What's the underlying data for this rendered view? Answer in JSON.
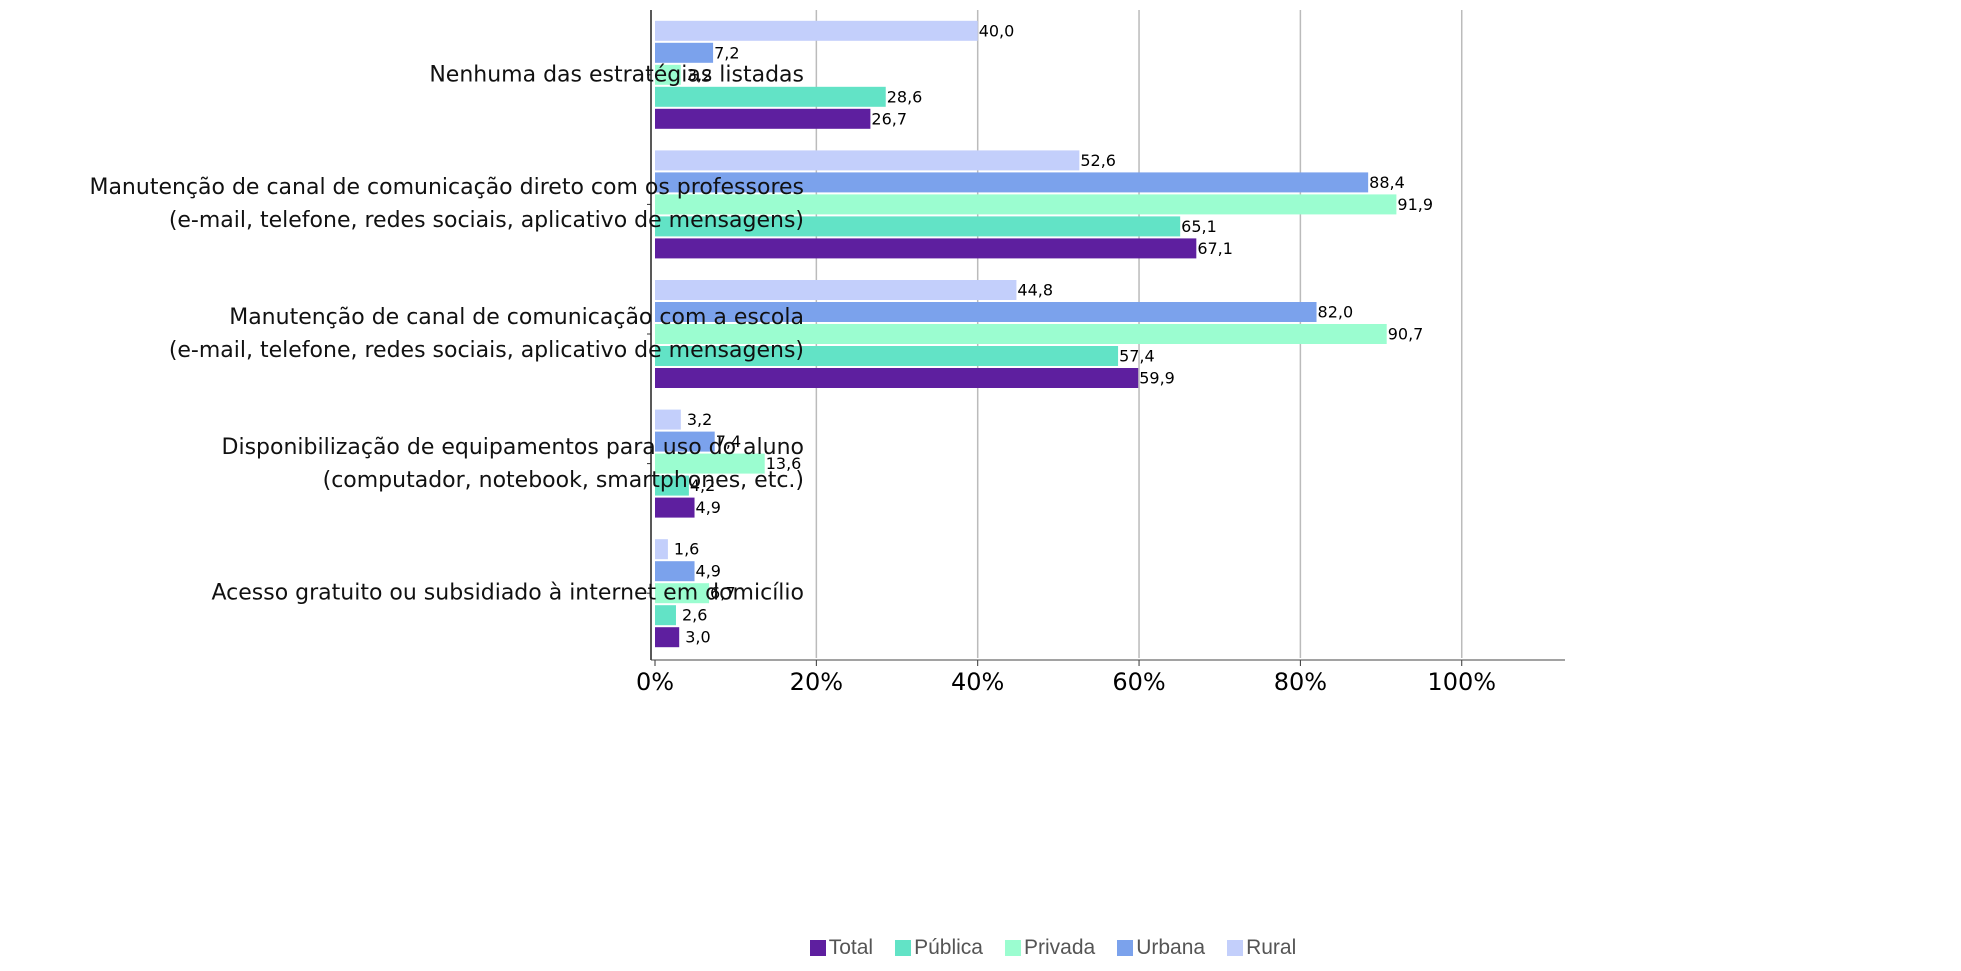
{
  "chart_data": {
    "type": "bar",
    "orientation": "horizontal",
    "categories": [
      "Nenhuma das estratégias listadas",
      "Manutenção de canal de comunicação direto com os professores\n(e-mail, telefone, redes sociais, aplicativo de mensagens)",
      "Manutenção de canal de comunicação com a escola\n(e-mail, telefone, redes sociais, aplicativo de mensagens)",
      "Disponibilização de equipamentos para uso do aluno\n(computador, notebook, smartphones, etc.)",
      "Acesso gratuito ou subsidiado à internet em domicílio"
    ],
    "series": [
      {
        "name": "Total",
        "color": "#5e1f9f",
        "values": [
          26.7,
          67.1,
          59.9,
          4.9,
          3.0
        ],
        "value_labels": [
          "26,7",
          "67,1",
          "59,9",
          "4,9",
          "3,0"
        ]
      },
      {
        "name": "Pública",
        "color": "#62e3c6",
        "values": [
          28.6,
          65.1,
          57.4,
          4.2,
          2.6
        ],
        "value_labels": [
          "28,6",
          "65,1",
          "57,4",
          "4,2",
          "2,6"
        ]
      },
      {
        "name": "Privada",
        "color": "#9bfdd0",
        "values": [
          3.2,
          91.9,
          90.7,
          13.6,
          6.7
        ],
        "value_labels": [
          "3,2",
          "91,9",
          "90,7",
          "13,6",
          "6,7"
        ]
      },
      {
        "name": "Urbana",
        "color": "#7ba2ec",
        "values": [
          7.2,
          88.4,
          82.0,
          7.4,
          4.9
        ],
        "value_labels": [
          "7,2",
          "88,4",
          "82,0",
          "7,4",
          "4,9"
        ]
      },
      {
        "name": "Rural",
        "color": "#c3cffb",
        "values": [
          40.0,
          52.6,
          44.8,
          3.2,
          1.6
        ],
        "value_labels": [
          "40,0",
          "52,6",
          "44,8",
          "3,2",
          "1,6"
        ]
      }
    ],
    "xlim": [
      0,
      112.8
    ],
    "xticks": [
      {
        "value": 0,
        "label": "0%"
      },
      {
        "value": 20,
        "label": "20%"
      },
      {
        "value": 40,
        "label": "40%"
      },
      {
        "value": 60,
        "label": "60%"
      },
      {
        "value": 80,
        "label": "80%"
      },
      {
        "value": 100,
        "label": "100%"
      }
    ],
    "grid": true,
    "legend": "bottom"
  }
}
